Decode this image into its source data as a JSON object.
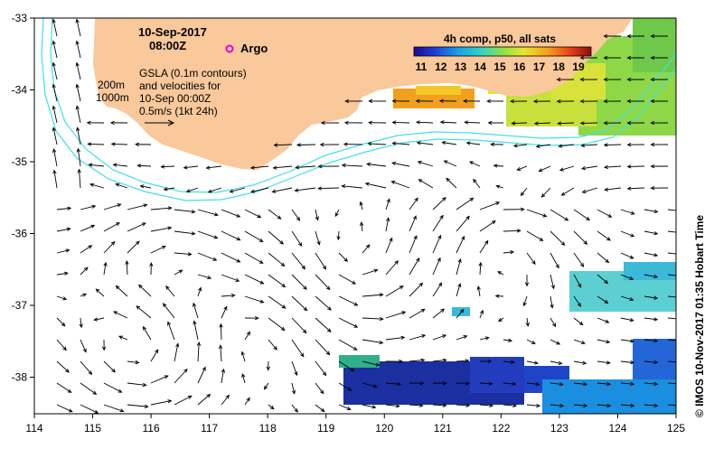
{
  "map": {
    "date": "10-Sep-2017",
    "time": "08:00Z",
    "argo_label": "Argo",
    "legend_lines": [
      "GSLA (0.1m contours)",
      "and velocities for",
      "10-Sep 00:00Z",
      "0.5m/s (1kt 24h)"
    ],
    "isobaths": [
      "200m",
      "1000m"
    ],
    "colorbar_title": "4h comp, p50, all sats",
    "colorbar_ticks": [
      "11",
      "12",
      "13",
      "14",
      "15",
      "16",
      "17",
      "18",
      "19"
    ],
    "credit": "© IMOS 10-Nov-2017 01:35 Hobart Time",
    "lon_ticks": [
      "114",
      "115",
      "116",
      "117",
      "118",
      "119",
      "120",
      "121",
      "122",
      "123",
      "124",
      "125"
    ],
    "lat_ticks": [
      "-33",
      "-34",
      "-35",
      "-36",
      "-37",
      "-38"
    ]
  },
  "colors": {
    "land": "#f9c89b",
    "contour": "#3fe0ea",
    "argo": "#e000e0"
  }
}
